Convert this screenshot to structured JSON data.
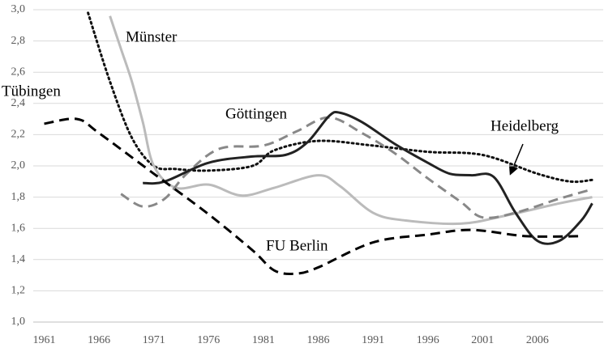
{
  "chart_data": {
    "type": "line",
    "xlim": [
      1960,
      2012
    ],
    "xticks": [
      1961,
      1966,
      1971,
      1976,
      1981,
      1986,
      1991,
      1996,
      2001,
      2006
    ],
    "ylim": [
      1.0,
      3.0
    ],
    "yticks": [
      {
        "value": 1.0,
        "label": "1,0"
      },
      {
        "value": 1.2,
        "label": "1,2"
      },
      {
        "value": 1.4,
        "label": "1,4"
      },
      {
        "value": 1.6,
        "label": "1,6"
      },
      {
        "value": 1.8,
        "label": "1,8"
      },
      {
        "value": 2.0,
        "label": "2,0"
      },
      {
        "value": 2.2,
        "label": "2,2"
      },
      {
        "value": 2.4,
        "label": "2,4"
      },
      {
        "value": 2.6,
        "label": "2,6"
      },
      {
        "value": 2.8,
        "label": "2,8"
      },
      {
        "value": 3.0,
        "label": "3,0"
      }
    ],
    "grid": true,
    "series": [
      {
        "name": "Tübingen",
        "color": "#111111",
        "style": "dotted",
        "x": [
          1965,
          1967,
          1969,
          1971,
          1973,
          1976,
          1980,
          1982,
          1986,
          1991,
          1996,
          2001,
          2006,
          2009,
          2011
        ],
        "values": [
          2.98,
          2.54,
          2.18,
          2.0,
          1.98,
          1.97,
          2.0,
          2.1,
          2.16,
          2.13,
          2.09,
          2.07,
          1.95,
          1.9,
          1.91
        ]
      },
      {
        "name": "Münster",
        "color": "#bbbbbb",
        "style": "solid",
        "x": [
          1967,
          1968,
          1969,
          1970,
          1971,
          1973,
          1976,
          1979,
          1982,
          1986,
          1988,
          1991,
          1994,
          1999,
          2003,
          2008,
          2011
        ],
        "values": [
          2.96,
          2.75,
          2.54,
          2.28,
          2.0,
          1.86,
          1.88,
          1.81,
          1.86,
          1.94,
          1.87,
          1.7,
          1.65,
          1.63,
          1.68,
          1.76,
          1.8
        ]
      },
      {
        "name": "Göttingen",
        "color": "#888888",
        "style": "dashed",
        "x": [
          1968,
          1970,
          1972,
          1974,
          1977,
          1981,
          1984,
          1987,
          1990,
          1993,
          1996,
          1999,
          2001,
          2004,
          2008,
          2011
        ],
        "values": [
          1.82,
          1.74,
          1.79,
          1.95,
          2.11,
          2.13,
          2.22,
          2.31,
          2.21,
          2.08,
          1.92,
          1.77,
          1.67,
          1.7,
          1.79,
          1.85
        ]
      },
      {
        "name": "Heidelberg",
        "color": "#222222",
        "style": "solid",
        "x": [
          1970,
          1972,
          1976,
          1980,
          1983,
          1985,
          1987,
          1988,
          1990,
          1993,
          1996,
          1998,
          2000,
          2002,
          2004,
          2006,
          2008,
          2010,
          2011
        ],
        "values": [
          1.89,
          1.9,
          2.02,
          2.06,
          2.07,
          2.15,
          2.32,
          2.34,
          2.28,
          2.14,
          2.02,
          1.95,
          1.94,
          1.93,
          1.7,
          1.52,
          1.52,
          1.65,
          1.76
        ]
      },
      {
        "name": "FU Berlin",
        "color": "#000000",
        "style": "dashed",
        "x": [
          1961,
          1964,
          1966,
          1971,
          1976,
          1980,
          1982,
          1984,
          1986,
          1991,
          1996,
          2000,
          2005,
          2010
        ],
        "values": [
          2.27,
          2.3,
          2.21,
          1.95,
          1.69,
          1.46,
          1.33,
          1.31,
          1.35,
          1.51,
          1.56,
          1.59,
          1.55,
          1.55
        ]
      }
    ]
  }
}
